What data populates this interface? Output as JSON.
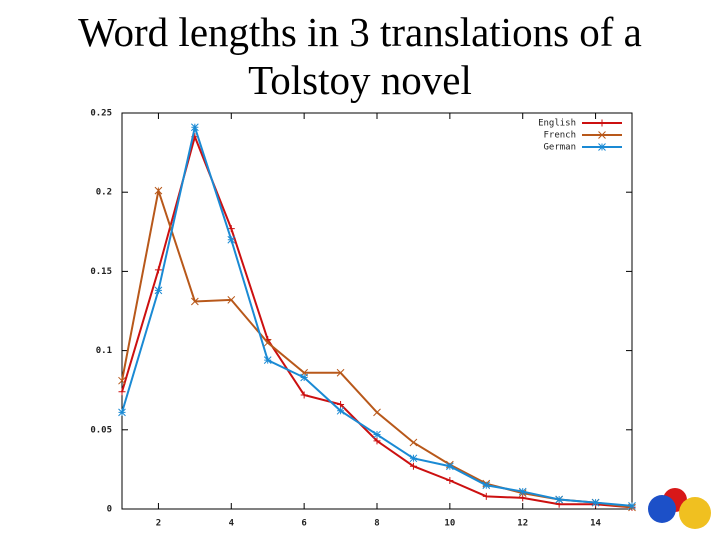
{
  "chart_data": {
    "type": "line",
    "title": "Word lengths in 3 translations of a Tolstoy novel",
    "x": [
      1,
      2,
      3,
      4,
      5,
      6,
      7,
      8,
      9,
      10,
      11,
      12,
      13,
      14,
      15
    ],
    "series": [
      {
        "name": "English",
        "color": "#cc1010",
        "marker": "plus",
        "values": [
          0.074,
          0.151,
          0.235,
          0.177,
          0.107,
          0.072,
          0.066,
          0.043,
          0.027,
          0.018,
          0.008,
          0.007,
          0.003,
          0.003,
          0.001
        ]
      },
      {
        "name": "French",
        "color": "#b8581a",
        "marker": "cross",
        "values": [
          0.081,
          0.201,
          0.131,
          0.132,
          0.105,
          0.086,
          0.086,
          0.061,
          0.042,
          0.028,
          0.016,
          0.01,
          0.006,
          0.004,
          0.001
        ]
      },
      {
        "name": "German",
        "color": "#1a8ad4",
        "marker": "star",
        "values": [
          0.061,
          0.138,
          0.241,
          0.17,
          0.094,
          0.083,
          0.062,
          0.047,
          0.032,
          0.027,
          0.015,
          0.011,
          0.006,
          0.004,
          0.002
        ]
      }
    ],
    "xlim": [
      1,
      15
    ],
    "xticks": [
      2,
      4,
      6,
      8,
      10,
      12,
      14
    ],
    "ylim": [
      0,
      0.25
    ],
    "yticks": [
      0,
      0.05,
      0.1,
      0.15,
      0.2,
      0.25
    ],
    "legend": "top-right"
  }
}
